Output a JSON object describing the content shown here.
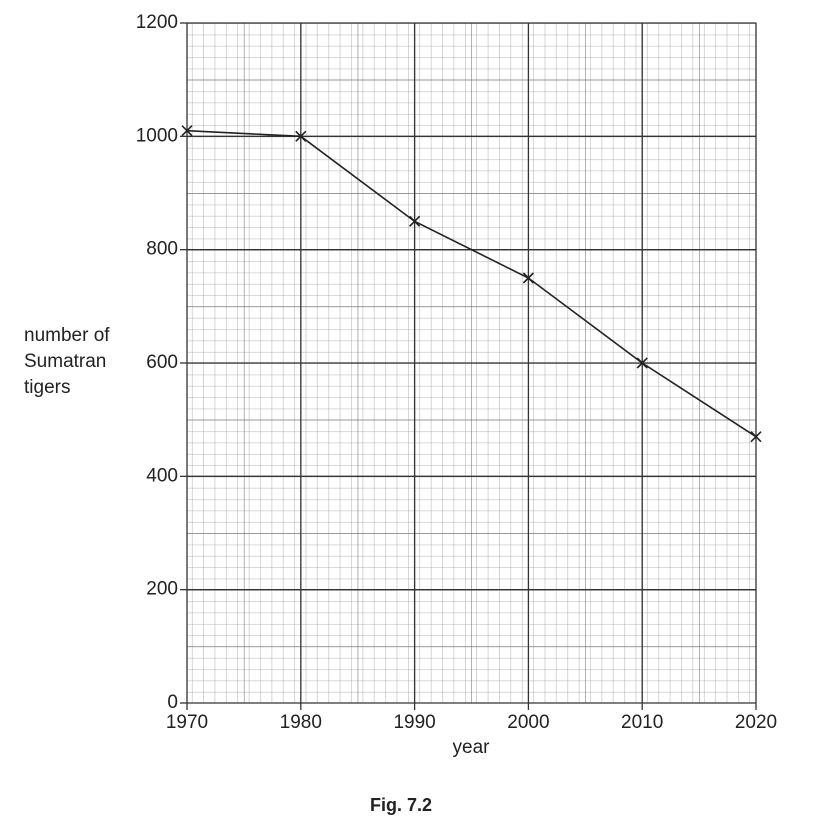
{
  "chart_data": {
    "type": "line",
    "x_label": "year",
    "y_label": "number of Sumatran tigers",
    "caption": "Fig. 7.2",
    "x": [
      1970,
      1980,
      1990,
      2000,
      2010,
      2020
    ],
    "series": [
      {
        "color": "#222222",
        "values": [
          1010,
          1000,
          850,
          750,
          600,
          470
        ]
      }
    ],
    "xlim": [
      1970,
      2020
    ],
    "xticks": [
      1970,
      1980,
      1990,
      2000,
      2010,
      2020
    ],
    "ylim": [
      0,
      1200
    ],
    "yticks": [
      0,
      200,
      400,
      600,
      800,
      1000,
      1200
    ],
    "grid": true,
    "marker": "x"
  }
}
